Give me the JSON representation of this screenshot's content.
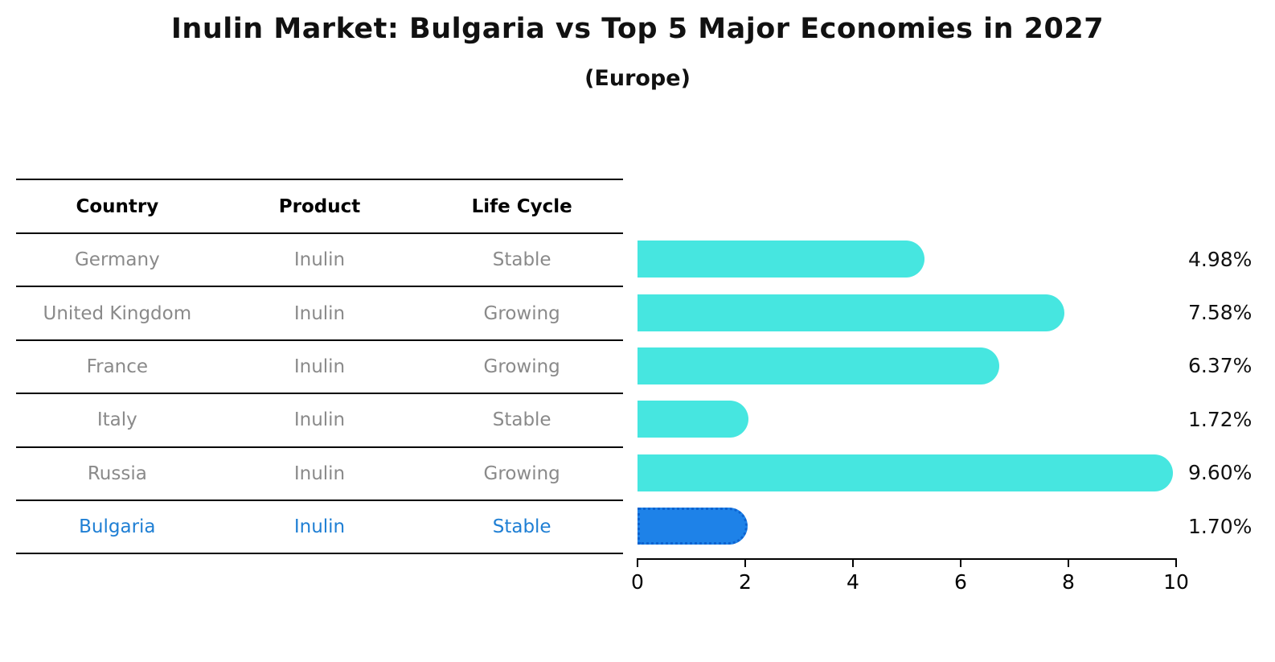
{
  "title": "Inulin Market: Bulgaria vs Top 5 Major Economies in 2027",
  "subtitle": "(Europe)",
  "table": {
    "headers": [
      "Country",
      "Product",
      "Life Cycle"
    ],
    "rows": [
      {
        "country": "Germany",
        "product": "Inulin",
        "life_cycle": "Stable"
      },
      {
        "country": "United Kingdom",
        "product": "Inulin",
        "life_cycle": "Growing"
      },
      {
        "country": "France",
        "product": "Inulin",
        "life_cycle": "Growing"
      },
      {
        "country": "Italy",
        "product": "Inulin",
        "life_cycle": "Stable"
      },
      {
        "country": "Russia",
        "product": "Inulin",
        "life_cycle": "Growing"
      },
      {
        "country": "Bulgaria",
        "product": "Inulin",
        "life_cycle": "Stable"
      }
    ]
  },
  "chart_data": {
    "type": "bar",
    "orientation": "horizontal",
    "title": "Inulin Market: Bulgaria vs Top 5 Major Economies in 2027",
    "subtitle": "(Europe)",
    "categories": [
      "Germany",
      "United Kingdom",
      "France",
      "Italy",
      "Russia",
      "Bulgaria"
    ],
    "values": [
      4.98,
      7.58,
      6.37,
      1.72,
      9.6,
      1.7
    ],
    "value_labels": [
      "4.98%",
      "7.58%",
      "6.37%",
      "1.72%",
      "9.60%",
      "1.70%"
    ],
    "xlabel": "",
    "ylabel": "",
    "xlim": [
      0,
      10
    ],
    "xticks": [
      "0",
      "2",
      "4",
      "6",
      "8",
      "10"
    ],
    "grid": false,
    "legend": false,
    "highlight_index": 5,
    "bar_color": "#46E6E0",
    "highlight_bar_color": "#1E82E8",
    "highlight_bar_border_color": "#0D63D0",
    "highlight_text_color": "#1F7FD4",
    "row_text_color": "#8a8a8a",
    "value_label_color": "#111111"
  }
}
